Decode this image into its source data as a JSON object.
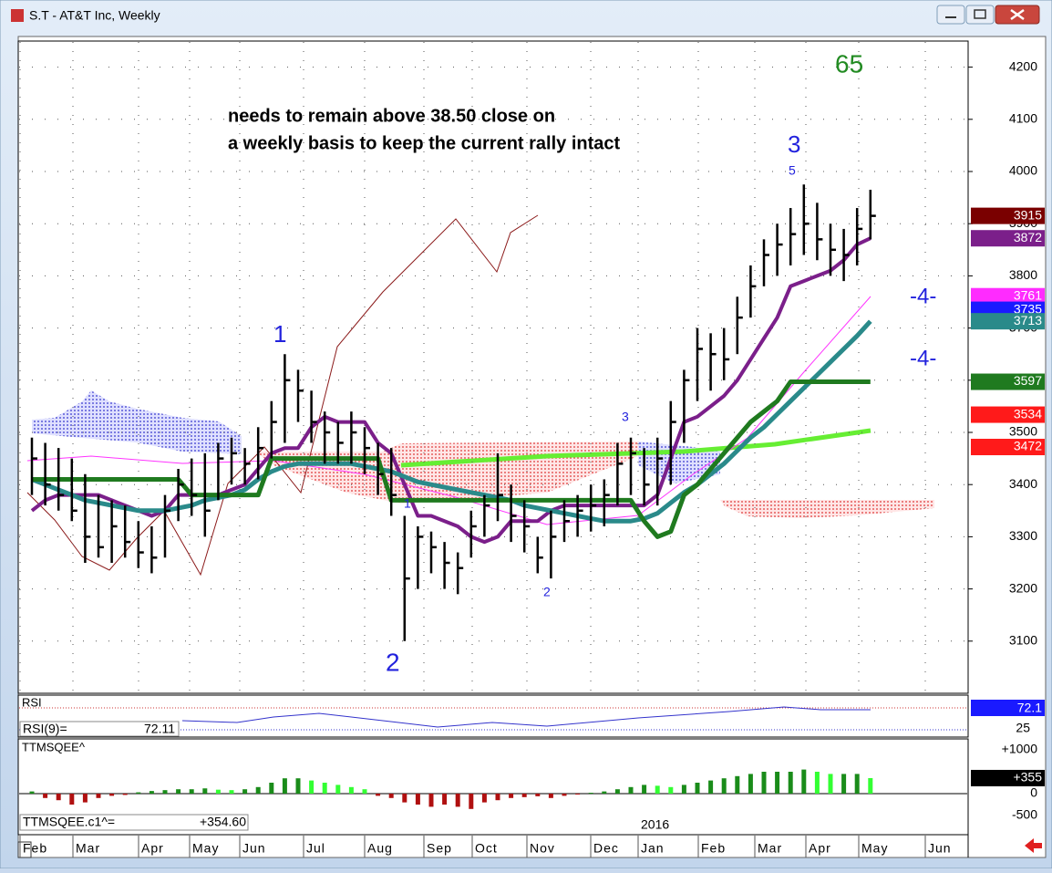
{
  "window": {
    "title": "S.T - AT&T Inc, Weekly"
  },
  "chart_data": {
    "type": "ohlc",
    "high": [
      3490,
      3480,
      3470,
      3450,
      3420,
      3380,
      3370,
      3360,
      3330,
      3320,
      3380,
      3430,
      3450,
      3460,
      3480,
      3490,
      3470,
      3510,
      3560,
      3650,
      3620,
      3580,
      3540,
      3520,
      3540,
      3510,
      3480,
      3470,
      3340,
      3320,
      3310,
      3290,
      3270,
      3350,
      3380,
      3460,
      3400,
      3370,
      3300,
      3350,
      3370,
      3380,
      3400,
      3410,
      3480,
      3490,
      3470,
      3490,
      3560,
      3620,
      3700,
      3690,
      3700,
      3760,
      3820,
      3870,
      3900,
      3930,
      3975,
      3940,
      3900,
      3890,
      3930,
      3965
    ],
    "low": [
      3380,
      3360,
      3350,
      3330,
      3250,
      3260,
      3250,
      3260,
      3240,
      3230,
      3260,
      3330,
      3340,
      3300,
      3370,
      3400,
      3400,
      3410,
      3450,
      3480,
      3520,
      3480,
      3440,
      3440,
      3440,
      3420,
      3380,
      3340,
      3100,
      3200,
      3230,
      3200,
      3190,
      3260,
      3300,
      3330,
      3290,
      3270,
      3230,
      3220,
      3290,
      3300,
      3310,
      3320,
      3360,
      3380,
      3360,
      3360,
      3400,
      3480,
      3560,
      3580,
      3600,
      3650,
      3720,
      3780,
      3800,
      3820,
      3840,
      3830,
      3800,
      3790,
      3820,
      3870
    ],
    "close": [
      3450,
      3400,
      3380,
      3350,
      3300,
      3280,
      3320,
      3290,
      3270,
      3260,
      3350,
      3400,
      3380,
      3350,
      3450,
      3460,
      3440,
      3470,
      3520,
      3600,
      3580,
      3520,
      3500,
      3480,
      3500,
      3470,
      3420,
      3380,
      3220,
      3300,
      3280,
      3250,
      3240,
      3320,
      3360,
      3380,
      3340,
      3320,
      3260,
      3300,
      3330,
      3350,
      3360,
      3380,
      3440,
      3460,
      3400,
      3450,
      3520,
      3600,
      3660,
      3650,
      3640,
      3720,
      3780,
      3840,
      3860,
      3880,
      3900,
      3870,
      3850,
      3840,
      3890,
      3915
    ],
    "bar_color": "#000000",
    "lines": [
      {
        "color": "#7b1f8a",
        "width": 4,
        "values": [
          3350,
          3370,
          3380,
          3380,
          3380,
          3380,
          3370,
          3360,
          3350,
          3340,
          3350,
          3380,
          3380,
          3380,
          3380,
          3390,
          3400,
          3430,
          3460,
          3470,
          3470,
          3510,
          3530,
          3520,
          3520,
          3520,
          3480,
          3460,
          3400,
          3340,
          3340,
          3330,
          3320,
          3300,
          3290,
          3300,
          3330,
          3330,
          3330,
          3350,
          3360,
          3360,
          3360,
          3360,
          3360,
          3360,
          3360,
          3380,
          3450,
          3520,
          3530,
          3550,
          3570,
          3600,
          3640,
          3680,
          3720,
          3780,
          3790,
          3800,
          3810,
          3830,
          3860,
          3872
        ]
      },
      {
        "color": "#2a8a8a",
        "width": 5,
        "values": [
          3410,
          3400,
          3390,
          3380,
          3370,
          3365,
          3360,
          3355,
          3350,
          3350,
          3350,
          3355,
          3360,
          3370,
          3375,
          3380,
          3390,
          3410,
          3425,
          3435,
          3440,
          3440,
          3440,
          3440,
          3440,
          3435,
          3430,
          3425,
          3415,
          3405,
          3400,
          3395,
          3390,
          3385,
          3380,
          3375,
          3370,
          3360,
          3355,
          3350,
          3345,
          3340,
          3335,
          3330,
          3330,
          3330,
          3335,
          3345,
          3365,
          3385,
          3400,
          3420,
          3440,
          3465,
          3490,
          3510,
          3535,
          3560,
          3585,
          3610,
          3635,
          3660,
          3685,
          3713
        ]
      },
      {
        "color": "#1f7a1f",
        "width": 5,
        "values": [
          3410,
          3410,
          3410,
          3410,
          3410,
          3410,
          3410,
          3410,
          3410,
          3410,
          3410,
          3410,
          3380,
          3380,
          3380,
          3380,
          3380,
          3380,
          3450,
          3450,
          3450,
          3450,
          3450,
          3450,
          3450,
          3450,
          3450,
          3370,
          3370,
          3370,
          3370,
          3370,
          3370,
          3370,
          3370,
          3370,
          3370,
          3370,
          3370,
          3370,
          3370,
          3370,
          3370,
          3370,
          3370,
          3370,
          3330,
          3300,
          3310,
          3380,
          3400,
          3430,
          3460,
          3490,
          3520,
          3540,
          3560,
          3597,
          3597,
          3597,
          3597,
          3597,
          3597,
          3597
        ]
      }
    ],
    "ylim": [
      3000,
      4250
    ],
    "yticks": [
      3100,
      3200,
      3300,
      3400,
      3500,
      3600,
      3700,
      3800,
      3900,
      4000,
      4100,
      4200
    ],
    "grid": true,
    "price_tags": [
      {
        "value": 3915,
        "color": "#7a0000"
      },
      {
        "value": 3872,
        "color": "#7b1f8a"
      },
      {
        "value": 3761,
        "color": "#ff2bff"
      },
      {
        "value": 3735,
        "color": "#1a1aff"
      },
      {
        "value": 3713,
        "color": "#2a8a8a"
      },
      {
        "value": 3597,
        "color": "#1f7a1f"
      },
      {
        "value": 3534,
        "color": "#ff1a1a"
      },
      {
        "value": 3472,
        "color": "#ff1a1a"
      }
    ],
    "months": [
      "Feb",
      "Mar",
      "Apr",
      "May",
      "Jun",
      "Jul",
      "Aug",
      "Sep",
      "Oct",
      "Nov",
      "Dec",
      "Jan",
      "Feb",
      "Mar",
      "Apr",
      "May",
      "Jun"
    ],
    "year_label": "2016",
    "annotations": {
      "note1": "needs to remain above 38.50 close on",
      "note2": "a weekly basis to keep the current rally intact",
      "w65": "65",
      "w3": "3",
      "w5": "5",
      "w1": "1",
      "w2": "2",
      "m4a": "-4-",
      "m4b": "-4-",
      "s1": "1",
      "s2": "2",
      "s3": "3"
    }
  },
  "rsi": {
    "label": "RSI",
    "readout": "RSI(9)=",
    "value": 72.11,
    "tag": 72.1,
    "tick": 25
  },
  "ttm": {
    "label": "TTMSQEE^",
    "readout": "TTMSQEE.c1^=",
    "value": 354.6,
    "value_label": "+354.60",
    "ticks": [
      {
        "value": 1000,
        "label": "+1000"
      },
      0,
      -500
    ],
    "tag": {
      "value": 355,
      "label": "+355"
    },
    "pos_rise": "#1a8c1a",
    "pos_fall": "#33ff33",
    "neg": "#b01010",
    "values": [
      50,
      -100,
      -150,
      -250,
      -200,
      -100,
      -50,
      -30,
      30,
      60,
      80,
      100,
      100,
      120,
      90,
      80,
      100,
      150,
      250,
      350,
      350,
      300,
      250,
      200,
      150,
      100,
      -50,
      -100,
      -200,
      -250,
      -300,
      -250,
      -300,
      -350,
      -200,
      -150,
      -100,
      -80,
      -60,
      -100,
      -50,
      -20,
      20,
      50,
      100,
      150,
      200,
      180,
      150,
      200,
      250,
      300,
      350,
      400,
      450,
      500,
      500,
      500,
      550,
      500,
      450,
      450,
      450,
      355
    ]
  }
}
